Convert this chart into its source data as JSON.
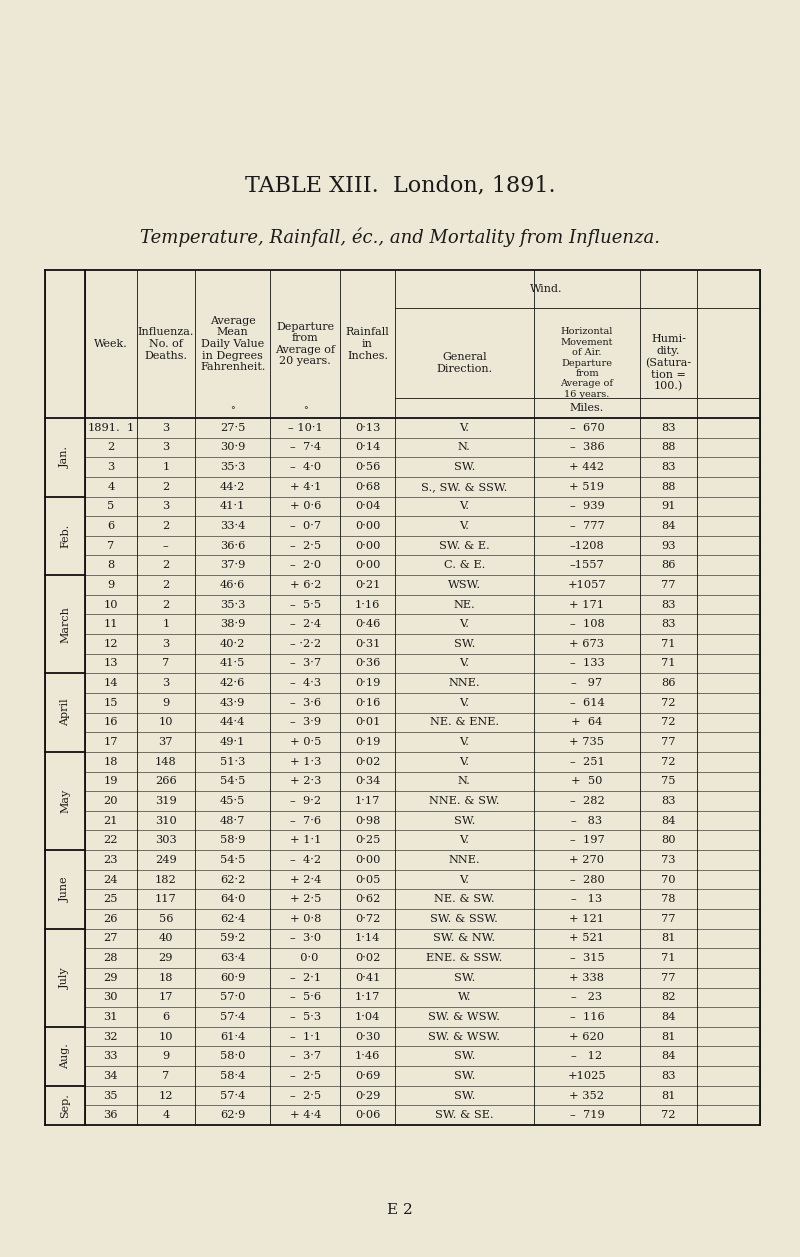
{
  "title1": "TABLE XIII.  London, 1891.",
  "title2": "Temperature, Rainfall, éc., and Mortality from Influenza.",
  "footer": "E 2",
  "bg_color": "#ede8d5",
  "rows": [
    {
      "week": "1",
      "deaths": "3",
      "temp": "27·5",
      "dep_temp": "– 10·1",
      "rain": "0·13",
      "dir": "V.",
      "dep_wind": "–  670",
      "hum": "83"
    },
    {
      "week": "2",
      "deaths": "3",
      "temp": "30·9",
      "dep_temp": "–  7·4",
      "rain": "0·14",
      "dir": "N.",
      "dep_wind": "–  386",
      "hum": "88"
    },
    {
      "week": "3",
      "deaths": "1",
      "temp": "35·3",
      "dep_temp": "–  4·0",
      "rain": "0·56",
      "dir": "SW.",
      "dep_wind": "+ 442",
      "hum": "83"
    },
    {
      "week": "4",
      "deaths": "2",
      "temp": "44·2",
      "dep_temp": "+ 4·1",
      "rain": "0·68",
      "dir": "S., SW. & SSW.",
      "dep_wind": "+ 519",
      "hum": "88"
    },
    {
      "week": "5",
      "deaths": "3",
      "temp": "41·1",
      "dep_temp": "+ 0·6",
      "rain": "0·04",
      "dir": "V.",
      "dep_wind": "–  939",
      "hum": "91"
    },
    {
      "week": "6",
      "deaths": "2",
      "temp": "33·4",
      "dep_temp": "–  0·7",
      "rain": "0·00",
      "dir": "V.",
      "dep_wind": "–  777",
      "hum": "84"
    },
    {
      "week": "7",
      "deaths": "–",
      "temp": "36·6",
      "dep_temp": "–  2·5",
      "rain": "0·00",
      "dir": "SW. & E.",
      "dep_wind": "–1208",
      "hum": "93"
    },
    {
      "week": "8",
      "deaths": "2",
      "temp": "37·9",
      "dep_temp": "–  2·0",
      "rain": "0·00",
      "dir": "C. & E.",
      "dep_wind": "–1557",
      "hum": "86"
    },
    {
      "week": "9",
      "deaths": "2",
      "temp": "46·6",
      "dep_temp": "+ 6·2",
      "rain": "0·21",
      "dir": "WSW.",
      "dep_wind": "+1057",
      "hum": "77"
    },
    {
      "week": "10",
      "deaths": "2",
      "temp": "35·3",
      "dep_temp": "–  5·5",
      "rain": "1·16",
      "dir": "NE.",
      "dep_wind": "+ 171",
      "hum": "83"
    },
    {
      "week": "11",
      "deaths": "1",
      "temp": "38·9",
      "dep_temp": "–  2·4",
      "rain": "0·46",
      "dir": "V.",
      "dep_wind": "–  108",
      "hum": "83"
    },
    {
      "week": "12",
      "deaths": "3",
      "temp": "40·2",
      "dep_temp": "– ·2·2",
      "rain": "0·31",
      "dir": "SW.",
      "dep_wind": "+ 673",
      "hum": "71"
    },
    {
      "week": "13",
      "deaths": "7",
      "temp": "41·5",
      "dep_temp": "–  3·7",
      "rain": "0·36",
      "dir": "V.",
      "dep_wind": "–  133",
      "hum": "71"
    },
    {
      "week": "14",
      "deaths": "3",
      "temp": "42·6",
      "dep_temp": "–  4·3",
      "rain": "0·19",
      "dir": "NNE.",
      "dep_wind": "–   97",
      "hum": "86"
    },
    {
      "week": "15",
      "deaths": "9",
      "temp": "43·9",
      "dep_temp": "–  3·6",
      "rain": "0·16",
      "dir": "V.",
      "dep_wind": "–  614",
      "hum": "72"
    },
    {
      "week": "16",
      "deaths": "10",
      "temp": "44·4",
      "dep_temp": "–  3·9",
      "rain": "0·01",
      "dir": "NE. & ENE.",
      "dep_wind": "+  64",
      "hum": "72"
    },
    {
      "week": "17",
      "deaths": "37",
      "temp": "49·1",
      "dep_temp": "+ 0·5",
      "rain": "0·19",
      "dir": "V.",
      "dep_wind": "+ 735",
      "hum": "77"
    },
    {
      "week": "18",
      "deaths": "148",
      "temp": "51·3",
      "dep_temp": "+ 1·3",
      "rain": "0·02",
      "dir": "V.",
      "dep_wind": "–  251",
      "hum": "72"
    },
    {
      "week": "19",
      "deaths": "266",
      "temp": "54·5",
      "dep_temp": "+ 2·3",
      "rain": "0·34",
      "dir": "N.",
      "dep_wind": "+  50",
      "hum": "75"
    },
    {
      "week": "20",
      "deaths": "319",
      "temp": "45·5",
      "dep_temp": "–  9·2",
      "rain": "1·17",
      "dir": "NNE. & SW.",
      "dep_wind": "–  282",
      "hum": "83"
    },
    {
      "week": "21",
      "deaths": "310",
      "temp": "48·7",
      "dep_temp": "–  7·6",
      "rain": "0·98",
      "dir": "SW.",
      "dep_wind": "–   83",
      "hum": "84"
    },
    {
      "week": "22",
      "deaths": "303",
      "temp": "58·9",
      "dep_temp": "+ 1·1",
      "rain": "0·25",
      "dir": "V.",
      "dep_wind": "–  197",
      "hum": "80"
    },
    {
      "week": "23",
      "deaths": "249",
      "temp": "54·5",
      "dep_temp": "–  4·2",
      "rain": "0·00",
      "dir": "NNE.",
      "dep_wind": "+ 270",
      "hum": "73"
    },
    {
      "week": "24",
      "deaths": "182",
      "temp": "62·2",
      "dep_temp": "+ 2·4",
      "rain": "0·05",
      "dir": "V.",
      "dep_wind": "–  280",
      "hum": "70"
    },
    {
      "week": "25",
      "deaths": "117",
      "temp": "64·0",
      "dep_temp": "+ 2·5",
      "rain": "0·62",
      "dir": "NE. & SW.",
      "dep_wind": "–   13",
      "hum": "78"
    },
    {
      "week": "26",
      "deaths": "56",
      "temp": "62·4",
      "dep_temp": "+ 0·8",
      "rain": "0·72",
      "dir": "SW. & SSW.",
      "dep_wind": "+ 121",
      "hum": "77"
    },
    {
      "week": "27",
      "deaths": "40",
      "temp": "59·2",
      "dep_temp": "–  3·0",
      "rain": "1·14",
      "dir": "SW. & NW.",
      "dep_wind": "+ 521",
      "hum": "81"
    },
    {
      "week": "28",
      "deaths": "29",
      "temp": "63·4",
      "dep_temp": "  0·0",
      "rain": "0·02",
      "dir": "ENE. & SSW.",
      "dep_wind": "–  315",
      "hum": "71"
    },
    {
      "week": "29",
      "deaths": "18",
      "temp": "60·9",
      "dep_temp": "–  2·1",
      "rain": "0·41",
      "dir": "SW.",
      "dep_wind": "+ 338",
      "hum": "77"
    },
    {
      "week": "30",
      "deaths": "17",
      "temp": "57·0",
      "dep_temp": "–  5·6",
      "rain": "1·17",
      "dir": "W.",
      "dep_wind": "–   23",
      "hum": "82"
    },
    {
      "week": "31",
      "deaths": "6",
      "temp": "57·4",
      "dep_temp": "–  5·3",
      "rain": "1·04",
      "dir": "SW. & WSW.",
      "dep_wind": "–  116",
      "hum": "84"
    },
    {
      "week": "32",
      "deaths": "10",
      "temp": "61·4",
      "dep_temp": "–  1·1",
      "rain": "0·30",
      "dir": "SW. & WSW.",
      "dep_wind": "+ 620",
      "hum": "81"
    },
    {
      "week": "33",
      "deaths": "9",
      "temp": "58·0",
      "dep_temp": "–  3·7",
      "rain": "1·46",
      "dir": "SW.",
      "dep_wind": "–   12",
      "hum": "84"
    },
    {
      "week": "34",
      "deaths": "7",
      "temp": "58·4",
      "dep_temp": "–  2·5",
      "rain": "0·69",
      "dir": "SW.",
      "dep_wind": "+1025",
      "hum": "83"
    },
    {
      "week": "35",
      "deaths": "12",
      "temp": "57·4",
      "dep_temp": "–  2·5",
      "rain": "0·29",
      "dir": "SW.",
      "dep_wind": "+ 352",
      "hum": "81"
    },
    {
      "week": "36",
      "deaths": "4",
      "temp": "62·9",
      "dep_temp": "+ 4·4",
      "rain": "0·06",
      "dir": "SW. & SE.",
      "dep_wind": "–  719",
      "hum": "72"
    }
  ],
  "month_spans": [
    {
      "name": "Jan.",
      "start": 0,
      "end": 4
    },
    {
      "name": "Feb.",
      "start": 4,
      "end": 8
    },
    {
      "name": "March",
      "start": 8,
      "end": 13
    },
    {
      "name": "April",
      "start": 13,
      "end": 17
    },
    {
      "name": "May",
      "start": 17,
      "end": 22
    },
    {
      "name": "June",
      "start": 22,
      "end": 26
    },
    {
      "name": "July",
      "start": 26,
      "end": 31
    },
    {
      "name": "Aug.",
      "start": 31,
      "end": 34
    },
    {
      "name": "Sep.",
      "start": 34,
      "end": 36
    }
  ]
}
